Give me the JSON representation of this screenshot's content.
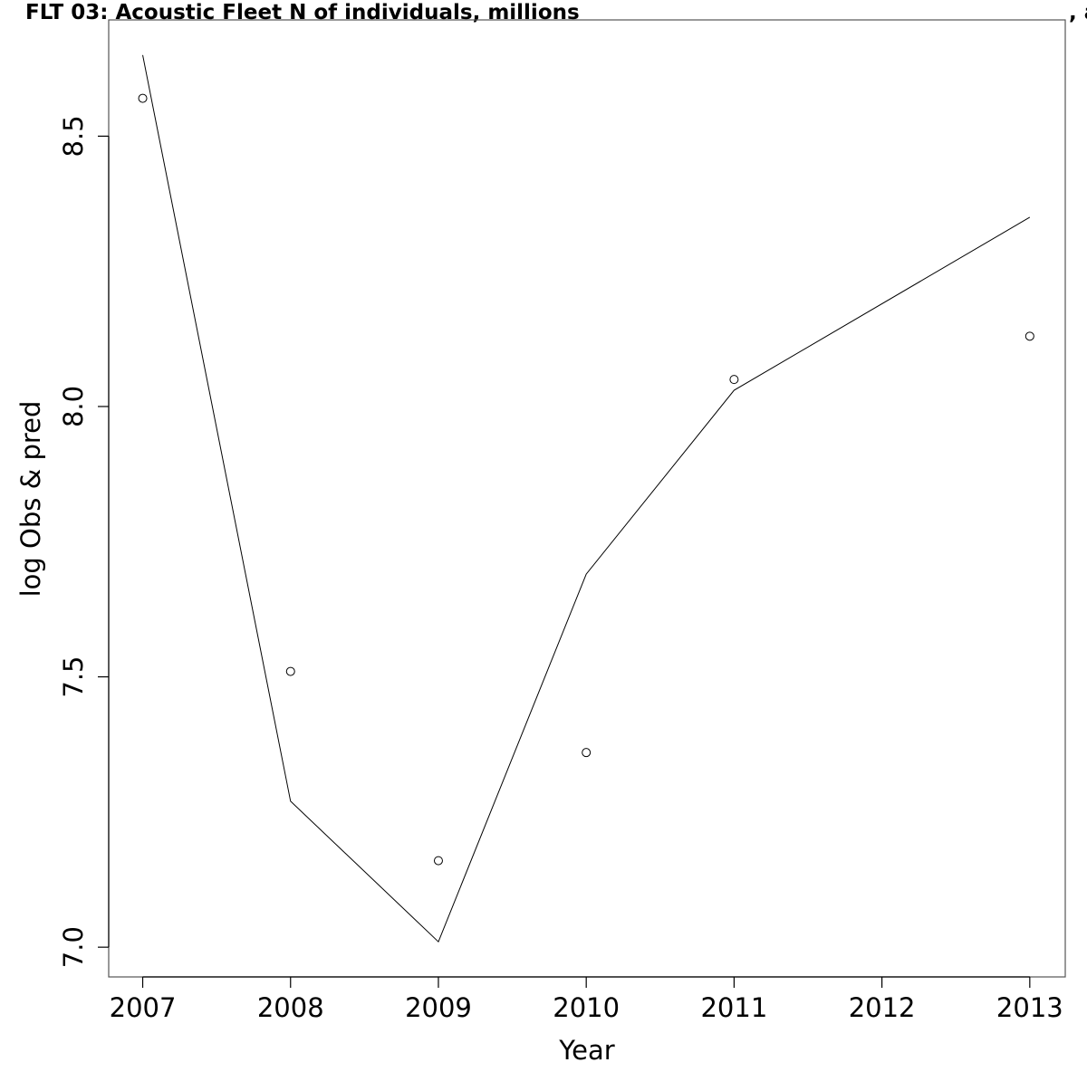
{
  "chart_data": {
    "type": "line",
    "title": "FLT 03: Acoustic Fleet   N of individuals, millions",
    "title_suffix": ", a",
    "xlabel": "Year",
    "ylabel": "log Obs & pred",
    "xlim": [
      2006.77,
      2013.24
    ],
    "ylim": [
      6.945,
      8.715
    ],
    "x_ticks": [
      2007,
      2008,
      2009,
      2010,
      2011,
      2012,
      2013
    ],
    "x_tick_labels": [
      "2007",
      "2008",
      "2009",
      "2010",
      "2011",
      "2012",
      "2013"
    ],
    "y_ticks": [
      7.0,
      7.5,
      8.0,
      8.5
    ],
    "y_tick_labels": [
      "7.0",
      "7.5",
      "8.0",
      "8.5"
    ],
    "grid": false,
    "legend": "none",
    "series": [
      {
        "style": "line",
        "color": "#000000",
        "x": [
          2007,
          2008,
          2009,
          2010,
          2011,
          2013
        ],
        "y": [
          8.65,
          7.27,
          7.01,
          7.69,
          8.03,
          8.35
        ]
      },
      {
        "style": "points",
        "marker": "open-circle",
        "color": "#000000",
        "x": [
          2007,
          2008,
          2009,
          2010,
          2011,
          2013
        ],
        "y": [
          8.57,
          7.51,
          7.16,
          7.36,
          8.05,
          8.13
        ]
      }
    ]
  }
}
